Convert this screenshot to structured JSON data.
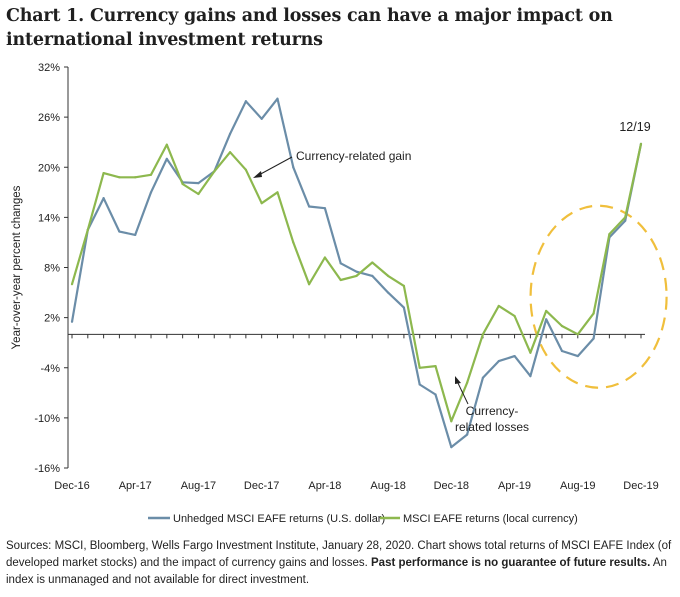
{
  "header": {
    "title": "Chart 1. Currency gains and losses can have a major impact on international investment returns"
  },
  "chart_data": {
    "type": "line",
    "ylabel": "Year-over-year percent changes",
    "ylim": [
      -16,
      32
    ],
    "yticks": [
      32,
      26,
      20,
      14,
      8,
      2,
      -4,
      -10,
      -16
    ],
    "ytick_labels": [
      "32%",
      "26%",
      "20%",
      "14%",
      "8%",
      "2%",
      "-4%",
      "-10%",
      "-16%"
    ],
    "xtick_labels": [
      "Dec-16",
      "Apr-17",
      "Aug-17",
      "Dec-17",
      "Apr-18",
      "Aug-18",
      "Dec-18",
      "Apr-19",
      "Aug-19",
      "Dec-19"
    ],
    "x_months": [
      "Dec-16",
      "Jan-17",
      "Feb-17",
      "Mar-17",
      "Apr-17",
      "May-17",
      "Jun-17",
      "Jul-17",
      "Aug-17",
      "Sep-17",
      "Oct-17",
      "Nov-17",
      "Dec-17",
      "Jan-18",
      "Feb-18",
      "Mar-18",
      "Apr-18",
      "May-18",
      "Jun-18",
      "Jul-18",
      "Aug-18",
      "Sep-18",
      "Oct-18",
      "Nov-18",
      "Dec-18",
      "Jan-19",
      "Feb-19",
      "Mar-19",
      "Apr-19",
      "May-19",
      "Jun-19",
      "Jul-19",
      "Aug-19",
      "Sep-19",
      "Oct-19",
      "Nov-19",
      "Dec-19"
    ],
    "series": [
      {
        "name": "Unhedged MSCI EAFE returns (U.S. dollar)",
        "color": "#6b8da8",
        "values": [
          1.5,
          12.5,
          16.3,
          12.3,
          11.9,
          17.0,
          21.0,
          18.2,
          18.1,
          19.5,
          24.0,
          27.9,
          25.8,
          28.2,
          20.0,
          15.3,
          15.1,
          8.5,
          7.5,
          7.0,
          5.0,
          3.2,
          -6.0,
          -7.2,
          -13.5,
          -12.0,
          -5.2,
          -3.2,
          -2.6,
          -5.0,
          1.8,
          -2.0,
          -2.6,
          -0.5,
          11.6,
          13.6,
          22.8
        ]
      },
      {
        "name": "MSCI EAFE returns (local currency)",
        "color": "#8db84e",
        "values": [
          6.0,
          12.5,
          19.3,
          18.8,
          18.8,
          19.1,
          22.7,
          18.0,
          16.8,
          19.5,
          21.8,
          19.7,
          15.7,
          17.0,
          11.0,
          6.0,
          9.2,
          6.5,
          7.0,
          8.6,
          7.0,
          5.8,
          -4.0,
          -3.8,
          -10.4,
          -5.8,
          0.0,
          3.4,
          2.2,
          -2.2,
          2.8,
          1.0,
          0.0,
          2.5,
          12.0,
          14.0,
          22.8
        ]
      }
    ],
    "annotations": [
      {
        "text": "Currency-related gain",
        "x_month": "Dec-17",
        "y": 19.8
      },
      {
        "text": "Currency-",
        "x_month": "Apr-19",
        "y": -7.5
      },
      {
        "text": "related losses",
        "x_month": "Apr-19",
        "y": -10.5
      },
      {
        "text": "12/19",
        "x_month": "Dec-19",
        "y": 25
      }
    ],
    "highlight_ellipse": {
      "center_month": "Sep-19",
      "center_y": 4.5,
      "color": "#f0bf3c"
    },
    "legend": {
      "position": "bottom"
    }
  },
  "source": {
    "prefix": "Sources: MSCI, Bloomberg, Wells Fargo Investment Institute, January 28, 2020. Chart shows total returns of MSCI EAFE Index (of developed market stocks) and the impact of currency gains and losses. ",
    "bold": "Past performance is no guarantee of future results.",
    "suffix": " An index is unmanaged and not available for direct investment."
  }
}
